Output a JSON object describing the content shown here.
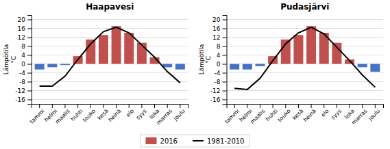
{
  "chart_data": [
    {
      "type": "bar",
      "title": "Haapavesi",
      "categories": [
        "tammi",
        "helmi",
        "maalis",
        "huhti",
        "touko",
        "kesä",
        "heinä",
        "elo",
        "syys",
        "loka",
        "marras",
        "joulu"
      ],
      "ylabel": "Lämpötila\n°C",
      "series": [
        {
          "name": "2016",
          "type": "bar",
          "color": "#c0504d",
          "values": [
            -2.5,
            -1.5,
            -0.5,
            3.5,
            11.0,
            13.0,
            17.0,
            14.0,
            9.5,
            3.0,
            -1.5,
            -2.5
          ],
          "colors": [
            "#4472c4",
            "#4472c4",
            "#4472c4",
            "#c0504d",
            "#c0504d",
            "#c0504d",
            "#c0504d",
            "#c0504d",
            "#c0504d",
            "#c0504d",
            "#4472c4",
            "#4472c4"
          ]
        },
        {
          "name": "1981-2010",
          "type": "line",
          "color": "#000000",
          "values": [
            -10.0,
            -10.0,
            -5.5,
            2.0,
            9.0,
            14.5,
            16.5,
            14.0,
            8.5,
            3.0,
            -3.5,
            -8.5
          ]
        }
      ],
      "ylim": [
        -18,
        22
      ],
      "yticks": [
        -16,
        -12,
        -8,
        -4,
        0,
        4,
        8,
        12,
        16,
        20
      ],
      "grid": true,
      "legend": "bottom"
    },
    {
      "type": "bar",
      "title": "Pudasjärvi",
      "categories": [
        "tammi",
        "helmi",
        "maalis",
        "huhti",
        "touko",
        "kesä",
        "heinä",
        "elo",
        "syys",
        "loka",
        "marras",
        "joulu"
      ],
      "ylabel": "Lämpötila\n°C",
      "series": [
        {
          "type": "bar",
          "values": [
            -2.5,
            -2.5,
            -1.0,
            3.5,
            11.0,
            13.0,
            17.0,
            14.0,
            9.5,
            2.0,
            -1.5,
            -3.5
          ],
          "colors": [
            "#4472c4",
            "#4472c4",
            "#4472c4",
            "#c0504d",
            "#c0504d",
            "#c0504d",
            "#c0504d",
            "#c0504d",
            "#c0504d",
            "#c0504d",
            "#4472c4",
            "#4472c4"
          ]
        },
        {
          "type": "line",
          "color": "#000000",
          "values": [
            -11.0,
            -11.5,
            -6.5,
            1.5,
            9.0,
            14.0,
            16.5,
            13.5,
            7.5,
            1.5,
            -5.0,
            -10.5
          ]
        }
      ],
      "ylim": [
        -18,
        22
      ],
      "yticks": [
        -16,
        -12,
        -8,
        -4,
        0,
        4,
        8,
        12,
        16,
        20
      ],
      "grid": true
    }
  ]
}
